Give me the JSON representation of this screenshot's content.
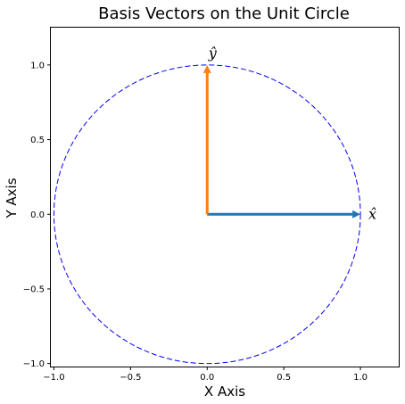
{
  "chart_data": {
    "type": "line",
    "title": "Basis Vectors on the Unit Circle",
    "xlabel": "X Axis",
    "ylabel": "Y Axis",
    "xlim": [
      -1.02,
      1.25
    ],
    "ylim": [
      -1.02,
      1.25
    ],
    "xticks": [
      -1.0,
      -0.5,
      0.0,
      0.5,
      1.0
    ],
    "yticks": [
      -1.0,
      -0.5,
      0.0,
      0.5,
      1.0
    ],
    "xtick_labels": [
      "−1.0",
      "−0.5",
      "0.0",
      "0.5",
      "1.0"
    ],
    "ytick_labels": [
      "−1.0",
      "−0.5",
      "0.0",
      "0.5",
      "1.0"
    ],
    "grid": false,
    "circle": {
      "center": [
        0,
        0
      ],
      "radius": 1,
      "color": "#0000ff",
      "style": "dashed"
    },
    "vectors": [
      {
        "label": "x̂",
        "from": [
          0,
          0
        ],
        "to": [
          1,
          0
        ],
        "color": "#1f77b4"
      },
      {
        "label": "ŷ",
        "from": [
          0,
          0
        ],
        "to": [
          0,
          1
        ],
        "color": "#ff7f0e"
      }
    ]
  }
}
